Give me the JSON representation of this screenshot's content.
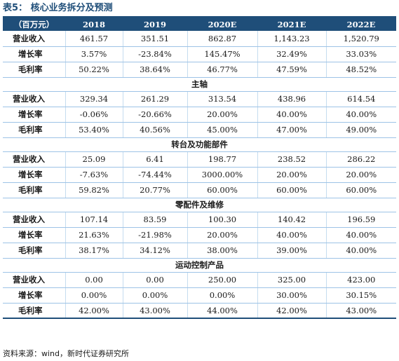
{
  "title": "表5： 核心业务拆分及预测",
  "table": {
    "unit_label": "（百万元）",
    "years": [
      "2018",
      "2019",
      "2020E",
      "2021E",
      "2022E"
    ],
    "rows": [
      {
        "type": "row",
        "label": "营业收入",
        "values": [
          "461.57",
          "351.51",
          "862.87",
          "1,143.23",
          "1,520.79"
        ]
      },
      {
        "type": "row",
        "label": "增长率",
        "values": [
          "3.57%",
          "-23.84%",
          "145.47%",
          "32.49%",
          "33.03%"
        ]
      },
      {
        "type": "row",
        "label": "毛利率",
        "values": [
          "50.22%",
          "38.64%",
          "46.77%",
          "47.59%",
          "48.52%"
        ]
      },
      {
        "type": "section",
        "label": "主轴"
      },
      {
        "type": "row",
        "label": "营业收入",
        "values": [
          "329.34",
          "261.29",
          "313.54",
          "438.96",
          "614.54"
        ]
      },
      {
        "type": "row",
        "label": "增长率",
        "values": [
          "-0.06%",
          "-20.66%",
          "20.00%",
          "40.00%",
          "40.00%"
        ]
      },
      {
        "type": "row",
        "label": "毛利率",
        "values": [
          "53.40%",
          "40.56%",
          "45.00%",
          "47.00%",
          "49.00%"
        ]
      },
      {
        "type": "section",
        "label": "转台及功能部件"
      },
      {
        "type": "row",
        "label": "营业收入",
        "values": [
          "25.09",
          "6.41",
          "198.77",
          "238.52",
          "286.22"
        ]
      },
      {
        "type": "row",
        "label": "增长率",
        "values": [
          "-7.63%",
          "-74.44%",
          "3000.00%",
          "20.00%",
          "20.00%"
        ]
      },
      {
        "type": "row",
        "label": "毛利率",
        "values": [
          "59.82%",
          "20.77%",
          "60.00%",
          "60.00%",
          "60.00%"
        ]
      },
      {
        "type": "section",
        "label": "零配件及维修"
      },
      {
        "type": "row",
        "label": "营业收入",
        "values": [
          "107.14",
          "83.59",
          "100.30",
          "140.42",
          "196.59"
        ]
      },
      {
        "type": "row",
        "label": "增长率",
        "values": [
          "21.63%",
          "-21.98%",
          "20.00%",
          "40.00%",
          "40.00%"
        ]
      },
      {
        "type": "row",
        "label": "毛利率",
        "values": [
          "38.17%",
          "34.12%",
          "38.00%",
          "39.00%",
          "40.00%"
        ]
      },
      {
        "type": "section",
        "label": "运动控制产品"
      },
      {
        "type": "row",
        "label": "营业收入",
        "values": [
          "0.00",
          "0.00",
          "250.00",
          "325.00",
          "423.00"
        ]
      },
      {
        "type": "row",
        "label": "增长率",
        "values": [
          "0.00%",
          "0.00%",
          "0.00%",
          "30.00%",
          "30.15%"
        ]
      },
      {
        "type": "row",
        "label": "毛利率",
        "values": [
          "42.00%",
          "43.00%",
          "44.00%",
          "42.00%",
          "43.00%"
        ]
      }
    ]
  },
  "source": "资料来源：wind，新时代证券研究所",
  "colors": {
    "header_bg": "#1f4e79",
    "rule": "#9dc3e6",
    "title": "#1f4e79"
  }
}
